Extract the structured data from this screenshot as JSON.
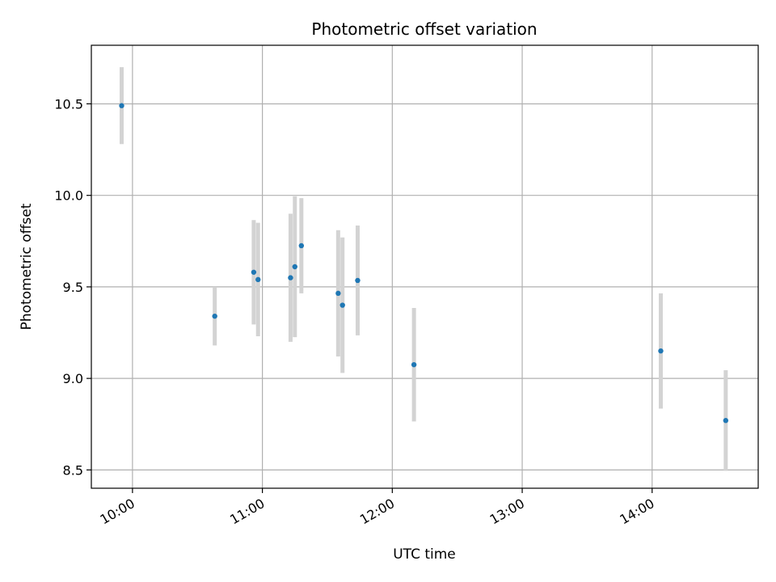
{
  "chart_data": {
    "type": "scatter",
    "title": "Photometric offset variation",
    "xlabel": "UTC time",
    "ylabel": "Photometric offset",
    "x_ticks": [
      "10:00",
      "11:00",
      "12:00",
      "13:00",
      "14:00"
    ],
    "y_ticks": [
      "8.5",
      "9.0",
      "9.5",
      "10.0",
      "10.5"
    ],
    "xlim": [
      "09:41",
      "14:49"
    ],
    "ylim": [
      8.4,
      10.82
    ],
    "grid": true,
    "colors": {
      "point": "#1f77b4",
      "errorbar": "#d3d3d3",
      "grid": "#b0b0b0"
    },
    "points": [
      {
        "x": "09:55",
        "y": 10.49,
        "err": 0.21
      },
      {
        "x": "10:38",
        "y": 9.34,
        "err": 0.16
      },
      {
        "x": "10:56",
        "y": 9.58,
        "err": 0.285
      },
      {
        "x": "10:58",
        "y": 9.54,
        "err": 0.31
      },
      {
        "x": "11:13",
        "y": 9.55,
        "err": 0.35
      },
      {
        "x": "11:15",
        "y": 9.61,
        "err": 0.385
      },
      {
        "x": "11:18",
        "y": 9.725,
        "err": 0.26
      },
      {
        "x": "11:35",
        "y": 9.465,
        "err": 0.345
      },
      {
        "x": "11:37",
        "y": 9.4,
        "err": 0.37
      },
      {
        "x": "11:44",
        "y": 9.535,
        "err": 0.3
      },
      {
        "x": "12:10",
        "y": 9.075,
        "err": 0.31
      },
      {
        "x": "14:04",
        "y": 9.15,
        "err": 0.315
      },
      {
        "x": "14:34",
        "y": 8.77,
        "err": 0.275
      }
    ]
  }
}
